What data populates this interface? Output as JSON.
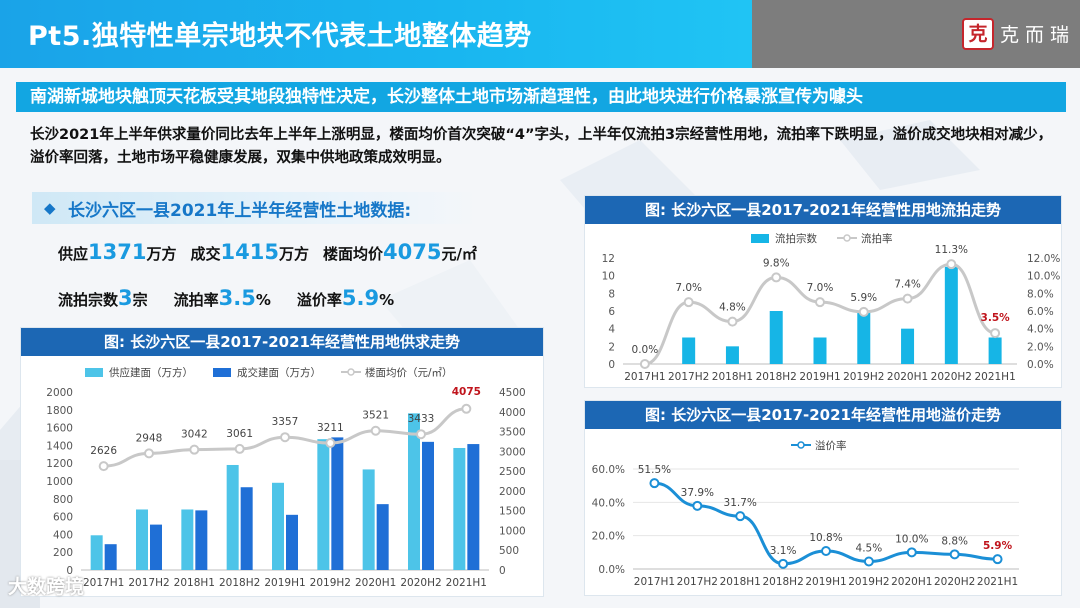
{
  "header": {
    "title": "Pt5.独特性单宗地块不代表土地整体趋势",
    "brand_seal": "克",
    "brand_name": "克而瑞",
    "accent": "#19b6f0"
  },
  "banner": {
    "text": "南湖新城地块触顶天花板受其地段独特性决定，长沙整体土地市场渐趋理性，由此地块进行价格暴涨宣传为噱头"
  },
  "summary": {
    "text": "长沙2021年上半年供求量价同比去年上半年上涨明显，楼面均价首次突破“4”字头，上半年仅流拍3宗经营性用地，流拍率下跌明显，溢价成交地块相对减少，溢价率回落，土地市场平稳健康发展，双集中供地政策成效明显。"
  },
  "section": {
    "title": "长沙六区一县2021年上半年经营性土地数据:"
  },
  "stats": {
    "supply_label": "供应",
    "supply_value": "1371",
    "supply_unit": "万方",
    "deal_label": "成交",
    "deal_value": "1415",
    "deal_unit": "万方",
    "price_label": "楼面均价",
    "price_value": "4075",
    "price_unit": "元/㎡",
    "fail_count_label": "流拍宗数",
    "fail_count_value": "3",
    "fail_count_unit": "宗",
    "fail_rate_label": "流拍率",
    "fail_rate_value": "3.5",
    "fail_rate_unit": "%",
    "premium_label": "溢价率",
    "premium_value": "5.9",
    "premium_unit": "%"
  },
  "watermark": {
    "text": "大数跨境"
  },
  "chart_data": [
    {
      "type": "bar",
      "title": "图:  长沙六区一县2017-2021年经营性用地供求走势",
      "categories": [
        "2017H1",
        "2017H2",
        "2018H1",
        "2018H2",
        "2019H1",
        "2019H2",
        "2020H1",
        "2020H2",
        "2021H1"
      ],
      "series": [
        {
          "name": "供应建面（万方）",
          "type": "bar",
          "axis": "left",
          "color": "#4dc4e8",
          "values": [
            390,
            680,
            680,
            1180,
            980,
            1470,
            1130,
            1760,
            1371
          ]
        },
        {
          "name": "成交建面（万方）",
          "type": "bar",
          "axis": "left",
          "color": "#1f6fd6",
          "values": [
            290,
            510,
            670,
            930,
            620,
            1490,
            740,
            1440,
            1415
          ]
        },
        {
          "name": "楼面均价（元/㎡）",
          "type": "line",
          "axis": "right",
          "color": "#c8c8c8",
          "values": [
            2626,
            2948,
            3042,
            3061,
            3357,
            3211,
            3521,
            3433,
            4075
          ],
          "labels": [
            "2626",
            "2948",
            "3042",
            "3061",
            "3357",
            "3211",
            "3521",
            "3433",
            "4075"
          ]
        }
      ],
      "ylim_left": [
        0,
        2000
      ],
      "yticks_left": [
        "0",
        "200",
        "400",
        "600",
        "800",
        "1000",
        "1200",
        "1400",
        "1600",
        "1800",
        "2000"
      ],
      "ylim_right": [
        0,
        4500
      ],
      "yticks_right": [
        "0",
        "500",
        "1000",
        "1500",
        "2000",
        "2500",
        "3000",
        "3500",
        "4000",
        "4500"
      ],
      "highlight_color": "#c0141c"
    },
    {
      "type": "bar",
      "title": "图:  长沙六区一县2017-2021年经营性用地流拍走势",
      "categories": [
        "2017H1",
        "2017H2",
        "2018H1",
        "2018H2",
        "2019H1",
        "2019H2",
        "2020H1",
        "2020H2",
        "2021H1"
      ],
      "series": [
        {
          "name": "流拍宗数",
          "type": "bar",
          "axis": "left",
          "color": "#16b5e6",
          "values": [
            0,
            3,
            2,
            6,
            3,
            6,
            4,
            11,
            3
          ]
        },
        {
          "name": "流拍率",
          "type": "line",
          "axis": "right",
          "color": "#c8c8c8",
          "values": [
            0.0,
            7.0,
            4.8,
            9.8,
            7.0,
            5.9,
            7.4,
            11.3,
            3.5
          ],
          "labels": [
            "0.0%",
            "7.0%",
            "4.8%",
            "9.8%",
            "7.0%",
            "5.9%",
            "7.4%",
            "11.3%",
            "3.5%"
          ]
        }
      ],
      "ylim_left": [
        0,
        12
      ],
      "yticks_left": [
        "0",
        "2",
        "4",
        "6",
        "8",
        "10",
        "12"
      ],
      "ylim_right": [
        0,
        12
      ],
      "yticks_right": [
        "0.0%",
        "2.0%",
        "4.0%",
        "6.0%",
        "8.0%",
        "10.0%",
        "12.0%"
      ],
      "highlight_color": "#c0141c"
    },
    {
      "type": "line",
      "title": "图:  长沙六区一县2017-2021年经营性用地溢价走势",
      "categories": [
        "2017H1",
        "2017H2",
        "2018H1",
        "2018H2",
        "2019H1",
        "2019H2",
        "2020H1",
        "2020H2",
        "2021H1"
      ],
      "series": [
        {
          "name": "溢价率",
          "type": "line",
          "axis": "left",
          "color": "#1b8fd6",
          "values": [
            51.5,
            37.9,
            31.7,
            3.1,
            10.8,
            4.5,
            10.0,
            8.8,
            5.9
          ],
          "labels": [
            "51.5%",
            "37.9%",
            "31.7%",
            "3.1%",
            "10.8%",
            "4.5%",
            "10.0%",
            "8.8%",
            "5.9%"
          ]
        }
      ],
      "ylim_left": [
        0,
        60
      ],
      "yticks_left": [
        "0.0%",
        "20.0%",
        "40.0%",
        "60.0%"
      ],
      "highlight_color": "#c0141c"
    }
  ]
}
